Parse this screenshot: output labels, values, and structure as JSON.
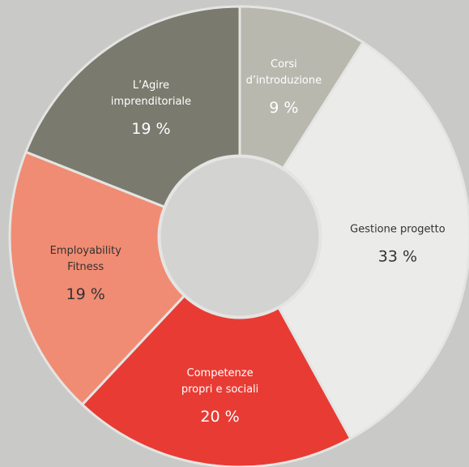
{
  "chart_data": {
    "type": "donut",
    "categories": [
      [
        "Corsi",
        "d’introduzione"
      ],
      [
        "Gestione progetto"
      ],
      [
        "Competenze",
        "propri e sociali"
      ],
      [
        "Employability",
        "Fitness"
      ],
      [
        "L’Agire",
        "imprenditoriale"
      ]
    ],
    "values": [
      9,
      33,
      20,
      19,
      19
    ],
    "value_labels": [
      "9 %",
      "33 %",
      "20 %",
      "19 %",
      "19 %"
    ],
    "colors": [
      "#b9b8ae",
      "#ebebea",
      "#e83b34",
      "#f08c73",
      "#7b7a6f"
    ],
    "label_colors": [
      "#ffffff",
      "#333333",
      "#ffffff",
      "#333333",
      "#ffffff"
    ]
  }
}
